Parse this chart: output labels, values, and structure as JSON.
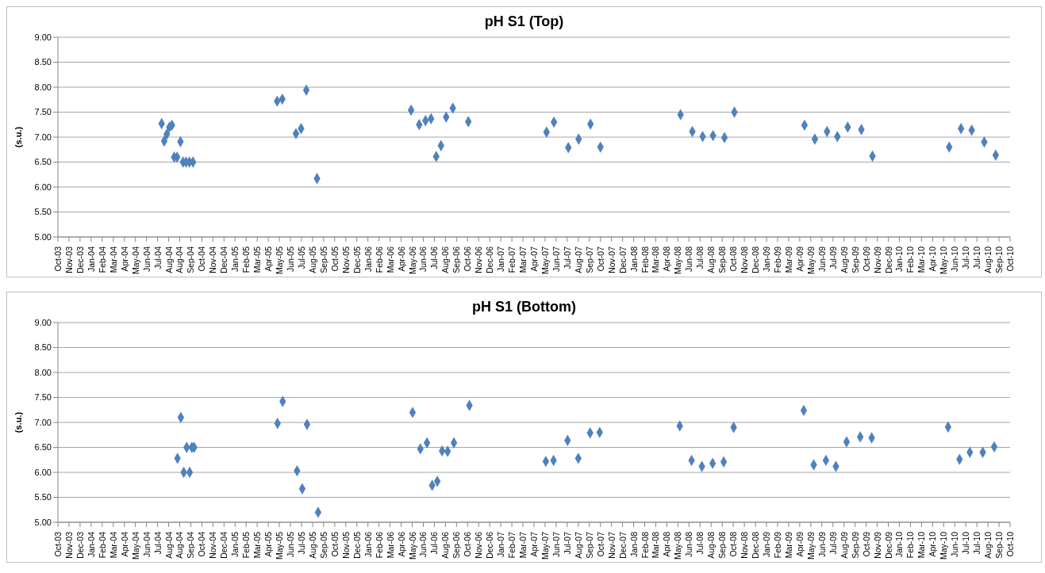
{
  "chart_data": [
    {
      "type": "scatter",
      "title": "pH S1 (Top)",
      "ylabel": "(s.u.)",
      "color": "#4f81bd",
      "marker": "diamond",
      "grid": "y",
      "x": [
        "2004-07-13",
        "2004-07-20",
        "2004-07-27",
        "2004-08-03",
        "2004-08-10",
        "2004-08-16",
        "2004-08-24",
        "2004-09-02",
        "2004-09-09",
        "2004-09-17",
        "2004-09-26",
        "2004-10-06",
        "2005-05-22",
        "2005-06-05",
        "2005-07-12",
        "2005-07-26",
        "2005-08-09",
        "2005-09-07",
        "2006-05-20",
        "2006-06-11",
        "2006-06-28",
        "2006-07-13",
        "2006-07-27",
        "2006-08-09",
        "2006-08-23",
        "2006-09-10",
        "2006-10-22",
        "2007-05-22",
        "2007-06-11",
        "2007-07-20",
        "2007-08-17",
        "2007-09-18",
        "2007-10-15",
        "2008-05-19",
        "2008-06-20",
        "2008-07-18",
        "2008-08-15",
        "2008-09-15",
        "2008-10-12",
        "2009-04-20",
        "2009-05-18",
        "2009-06-20",
        "2009-07-18",
        "2009-08-15",
        "2009-09-21",
        "2009-10-21",
        "2010-05-17",
        "2010-06-18",
        "2010-07-17",
        "2010-08-20",
        "2010-09-20"
      ],
      "values": [
        7.27,
        6.92,
        7.06,
        7.2,
        7.24,
        6.6,
        6.6,
        6.91,
        6.5,
        6.5,
        6.5,
        6.5,
        7.72,
        7.76,
        7.07,
        7.17,
        7.94,
        6.17,
        7.54,
        7.25,
        7.33,
        7.37,
        6.61,
        6.83,
        7.4,
        7.58,
        7.31,
        7.1,
        7.3,
        6.79,
        6.96,
        7.26,
        6.8,
        7.45,
        7.11,
        7.01,
        7.03,
        6.99,
        7.5,
        7.24,
        6.96,
        7.11,
        7.01,
        7.2,
        7.15,
        6.62,
        6.8,
        7.17,
        7.14,
        6.9,
        6.64
      ],
      "xlim": [
        "2003-10-06",
        "2010-10-29"
      ],
      "xticks": [
        {
          "value": "2003-10-06",
          "label": "Oct-03"
        },
        {
          "value": "2003-11-05",
          "label": "Nov-03"
        },
        {
          "value": "2003-12-05",
          "label": "Dec-03"
        },
        {
          "value": "2004-01-04",
          "label": "Jan-04"
        },
        {
          "value": "2004-02-03",
          "label": "Feb-04"
        },
        {
          "value": "2004-03-04",
          "label": "Mar-04"
        },
        {
          "value": "2004-04-03",
          "label": "Apr-04"
        },
        {
          "value": "2004-05-03",
          "label": "May-04"
        },
        {
          "value": "2004-06-02",
          "label": "Jun-04"
        },
        {
          "value": "2004-07-02",
          "label": "Jul-04"
        },
        {
          "value": "2004-08-01",
          "label": "Aug-04"
        },
        {
          "value": "2004-08-31",
          "label": "Aug-04"
        },
        {
          "value": "2004-09-30",
          "label": "Sep-04"
        },
        {
          "value": "2004-10-30",
          "label": "Oct-04"
        },
        {
          "value": "2004-11-29",
          "label": "Nov-04"
        },
        {
          "value": "2004-12-29",
          "label": "Dec-04"
        },
        {
          "value": "2005-01-28",
          "label": "Jan-05"
        },
        {
          "value": "2005-02-27",
          "label": "Feb-05"
        },
        {
          "value": "2005-03-29",
          "label": "Mar-05"
        },
        {
          "value": "2005-04-28",
          "label": "Apr-05"
        },
        {
          "value": "2005-05-28",
          "label": "May-05"
        },
        {
          "value": "2005-06-27",
          "label": "Jun-05"
        },
        {
          "value": "2005-07-27",
          "label": "Jul-05"
        },
        {
          "value": "2005-08-26",
          "label": "Aug-05"
        },
        {
          "value": "2005-09-25",
          "label": "Sep-05"
        },
        {
          "value": "2005-10-25",
          "label": "Oct-05"
        },
        {
          "value": "2005-11-24",
          "label": "Nov-05"
        },
        {
          "value": "2005-12-24",
          "label": "Dec-05"
        },
        {
          "value": "2006-01-23",
          "label": "Jan-06"
        },
        {
          "value": "2006-02-22",
          "label": "Feb-06"
        },
        {
          "value": "2006-03-24",
          "label": "Mar-06"
        },
        {
          "value": "2006-04-23",
          "label": "Apr-06"
        },
        {
          "value": "2006-05-23",
          "label": "May-06"
        },
        {
          "value": "2006-06-22",
          "label": "Jun-06"
        },
        {
          "value": "2006-07-22",
          "label": "Jul-06"
        },
        {
          "value": "2006-08-21",
          "label": "Aug-06"
        },
        {
          "value": "2006-09-20",
          "label": "Sep-06"
        },
        {
          "value": "2006-10-20",
          "label": "Oct-06"
        },
        {
          "value": "2006-11-19",
          "label": "Nov-06"
        },
        {
          "value": "2006-12-19",
          "label": "Dec-06"
        },
        {
          "value": "2007-01-18",
          "label": "Jan-07"
        },
        {
          "value": "2007-02-17",
          "label": "Feb-07"
        },
        {
          "value": "2007-03-19",
          "label": "Mar-07"
        },
        {
          "value": "2007-04-18",
          "label": "Apr-07"
        },
        {
          "value": "2007-05-18",
          "label": "May-07"
        },
        {
          "value": "2007-06-17",
          "label": "Jun-07"
        },
        {
          "value": "2007-07-17",
          "label": "Jul-07"
        },
        {
          "value": "2007-08-16",
          "label": "Aug-07"
        },
        {
          "value": "2007-09-15",
          "label": "Sep-07"
        },
        {
          "value": "2007-10-15",
          "label": "Oct-07"
        },
        {
          "value": "2007-11-14",
          "label": "Nov-07"
        },
        {
          "value": "2007-12-14",
          "label": "Dec-07"
        },
        {
          "value": "2008-01-13",
          "label": "Jan-08"
        },
        {
          "value": "2008-02-12",
          "label": "Feb-08"
        },
        {
          "value": "2008-03-13",
          "label": "Mar-08"
        },
        {
          "value": "2008-04-12",
          "label": "Apr-08"
        },
        {
          "value": "2008-05-12",
          "label": "May-08"
        },
        {
          "value": "2008-06-11",
          "label": "Jun-08"
        },
        {
          "value": "2008-07-11",
          "label": "Jul-08"
        },
        {
          "value": "2008-08-10",
          "label": "Aug-08"
        },
        {
          "value": "2008-09-09",
          "label": "Sep-08"
        },
        {
          "value": "2008-10-09",
          "label": "Oct-08"
        },
        {
          "value": "2008-11-08",
          "label": "Nov-08"
        },
        {
          "value": "2008-12-08",
          "label": "Dec-08"
        },
        {
          "value": "2009-01-07",
          "label": "Jan-09"
        },
        {
          "value": "2009-02-06",
          "label": "Feb-09"
        },
        {
          "value": "2009-03-08",
          "label": "Mar-09"
        },
        {
          "value": "2009-04-07",
          "label": "Apr-09"
        },
        {
          "value": "2009-05-07",
          "label": "May-09"
        },
        {
          "value": "2009-06-06",
          "label": "Jun-09"
        },
        {
          "value": "2009-07-06",
          "label": "Jul-09"
        },
        {
          "value": "2009-08-05",
          "label": "Aug-09"
        },
        {
          "value": "2009-09-04",
          "label": "Sep-09"
        },
        {
          "value": "2009-10-04",
          "label": "Oct-09"
        },
        {
          "value": "2009-11-03",
          "label": "Nov-09"
        },
        {
          "value": "2009-12-03",
          "label": "Dec-09"
        },
        {
          "value": "2010-01-02",
          "label": "Jan-10"
        },
        {
          "value": "2010-02-01",
          "label": "Feb-10"
        },
        {
          "value": "2010-03-03",
          "label": "Mar-10"
        },
        {
          "value": "2010-04-02",
          "label": "Apr-10"
        },
        {
          "value": "2010-05-02",
          "label": "May-10"
        },
        {
          "value": "2010-06-01",
          "label": "Jun-10"
        },
        {
          "value": "2010-07-01",
          "label": "Jul-10"
        },
        {
          "value": "2010-07-31",
          "label": "Jul-10"
        },
        {
          "value": "2010-08-30",
          "label": "Aug-10"
        },
        {
          "value": "2010-09-29",
          "label": "Sep-10"
        },
        {
          "value": "2010-10-29",
          "label": "Oct-10"
        }
      ],
      "ylim": [
        5,
        9
      ],
      "yticks": [
        {
          "value": 5,
          "label": "5.00"
        },
        {
          "value": 5.5,
          "label": "5.50"
        },
        {
          "value": 6,
          "label": "6.00"
        },
        {
          "value": 6.5,
          "label": "6.50"
        },
        {
          "value": 7,
          "label": "7.00"
        },
        {
          "value": 7.5,
          "label": "7.50"
        },
        {
          "value": 8,
          "label": "8.00"
        },
        {
          "value": 8.5,
          "label": "8.50"
        },
        {
          "value": 9,
          "label": "9.00"
        }
      ]
    },
    {
      "type": "scatter",
      "title": "pH S1 (Bottom)",
      "ylabel": "(s.u.)",
      "color": "#4f81bd",
      "marker": "diamond",
      "grid": "y",
      "x": [
        "2004-08-25",
        "2004-09-03",
        "2004-09-11",
        "2004-09-19",
        "2004-09-27",
        "2004-10-03",
        "2004-10-09",
        "2005-05-23",
        "2005-06-06",
        "2005-07-15",
        "2005-07-29",
        "2005-08-11",
        "2005-09-10",
        "2006-05-24",
        "2006-06-14",
        "2006-07-02",
        "2006-07-16",
        "2006-07-30",
        "2006-08-12",
        "2006-08-27",
        "2006-09-13",
        "2006-10-25",
        "2007-05-20",
        "2007-06-10",
        "2007-07-18",
        "2007-08-16",
        "2007-09-17",
        "2007-10-13",
        "2008-05-17",
        "2008-06-18",
        "2008-07-16",
        "2008-08-14",
        "2008-09-13",
        "2008-10-10",
        "2009-04-18",
        "2009-05-15",
        "2009-06-17",
        "2009-07-14",
        "2009-08-12",
        "2009-09-18",
        "2009-10-19",
        "2010-05-14",
        "2010-06-14",
        "2010-07-12",
        "2010-08-16",
        "2010-09-16"
      ],
      "values": [
        6.28,
        7.1,
        6.0,
        6.5,
        6.0,
        6.5,
        6.5,
        6.98,
        7.42,
        6.03,
        5.67,
        6.96,
        5.2,
        7.2,
        6.47,
        6.59,
        5.74,
        5.82,
        6.43,
        6.42,
        6.59,
        7.34,
        6.22,
        6.24,
        6.64,
        6.28,
        6.79,
        6.8,
        6.93,
        6.24,
        6.12,
        6.18,
        6.21,
        6.9,
        7.24,
        6.15,
        6.24,
        6.12,
        6.61,
        6.71,
        6.69,
        6.91,
        6.26,
        6.4,
        6.4,
        6.51
      ],
      "xlim": [
        "2003-10-06",
        "2010-10-29"
      ],
      "xticks": [
        {
          "value": "2003-10-06",
          "label": "Oct-03"
        },
        {
          "value": "2003-11-05",
          "label": "Nov-03"
        },
        {
          "value": "2003-12-05",
          "label": "Dec-03"
        },
        {
          "value": "2004-01-04",
          "label": "Jan-04"
        },
        {
          "value": "2004-02-03",
          "label": "Feb-04"
        },
        {
          "value": "2004-03-04",
          "label": "Mar-04"
        },
        {
          "value": "2004-04-03",
          "label": "Apr-04"
        },
        {
          "value": "2004-05-03",
          "label": "May-04"
        },
        {
          "value": "2004-06-02",
          "label": "Jun-04"
        },
        {
          "value": "2004-07-02",
          "label": "Jul-04"
        },
        {
          "value": "2004-08-01",
          "label": "Aug-04"
        },
        {
          "value": "2004-08-31",
          "label": "Aug-04"
        },
        {
          "value": "2004-09-30",
          "label": "Sep-04"
        },
        {
          "value": "2004-10-30",
          "label": "Oct-04"
        },
        {
          "value": "2004-11-29",
          "label": "Nov-04"
        },
        {
          "value": "2004-12-29",
          "label": "Dec-04"
        },
        {
          "value": "2005-01-28",
          "label": "Jan-05"
        },
        {
          "value": "2005-02-27",
          "label": "Feb-05"
        },
        {
          "value": "2005-03-29",
          "label": "Mar-05"
        },
        {
          "value": "2005-04-28",
          "label": "Apr-05"
        },
        {
          "value": "2005-05-28",
          "label": "May-05"
        },
        {
          "value": "2005-06-27",
          "label": "Jun-05"
        },
        {
          "value": "2005-07-27",
          "label": "Jul-05"
        },
        {
          "value": "2005-08-26",
          "label": "Aug-05"
        },
        {
          "value": "2005-09-25",
          "label": "Sep-05"
        },
        {
          "value": "2005-10-25",
          "label": "Oct-05"
        },
        {
          "value": "2005-11-24",
          "label": "Nov-05"
        },
        {
          "value": "2005-12-24",
          "label": "Dec-05"
        },
        {
          "value": "2006-01-23",
          "label": "Jan-06"
        },
        {
          "value": "2006-02-22",
          "label": "Feb-06"
        },
        {
          "value": "2006-03-24",
          "label": "Mar-06"
        },
        {
          "value": "2006-04-23",
          "label": "Apr-06"
        },
        {
          "value": "2006-05-23",
          "label": "May-06"
        },
        {
          "value": "2006-06-22",
          "label": "Jun-06"
        },
        {
          "value": "2006-07-22",
          "label": "Jul-06"
        },
        {
          "value": "2006-08-21",
          "label": "Aug-06"
        },
        {
          "value": "2006-09-20",
          "label": "Sep-06"
        },
        {
          "value": "2006-10-20",
          "label": "Oct-06"
        },
        {
          "value": "2006-11-19",
          "label": "Nov-06"
        },
        {
          "value": "2006-12-19",
          "label": "Dec-06"
        },
        {
          "value": "2007-01-18",
          "label": "Jan-07"
        },
        {
          "value": "2007-02-17",
          "label": "Feb-07"
        },
        {
          "value": "2007-03-19",
          "label": "Mar-07"
        },
        {
          "value": "2007-04-18",
          "label": "Apr-07"
        },
        {
          "value": "2007-05-18",
          "label": "May-07"
        },
        {
          "value": "2007-06-17",
          "label": "Jun-07"
        },
        {
          "value": "2007-07-17",
          "label": "Jul-07"
        },
        {
          "value": "2007-08-16",
          "label": "Aug-07"
        },
        {
          "value": "2007-09-15",
          "label": "Sep-07"
        },
        {
          "value": "2007-10-15",
          "label": "Oct-07"
        },
        {
          "value": "2007-11-14",
          "label": "Nov-07"
        },
        {
          "value": "2007-12-14",
          "label": "Dec-07"
        },
        {
          "value": "2008-01-13",
          "label": "Jan-08"
        },
        {
          "value": "2008-02-12",
          "label": "Feb-08"
        },
        {
          "value": "2008-03-13",
          "label": "Mar-08"
        },
        {
          "value": "2008-04-12",
          "label": "Apr-08"
        },
        {
          "value": "2008-05-12",
          "label": "May-08"
        },
        {
          "value": "2008-06-11",
          "label": "Jun-08"
        },
        {
          "value": "2008-07-11",
          "label": "Jul-08"
        },
        {
          "value": "2008-08-10",
          "label": "Aug-08"
        },
        {
          "value": "2008-09-09",
          "label": "Sep-08"
        },
        {
          "value": "2008-10-09",
          "label": "Oct-08"
        },
        {
          "value": "2008-11-08",
          "label": "Nov-08"
        },
        {
          "value": "2008-12-08",
          "label": "Dec-08"
        },
        {
          "value": "2009-01-07",
          "label": "Jan-09"
        },
        {
          "value": "2009-02-06",
          "label": "Feb-09"
        },
        {
          "value": "2009-03-08",
          "label": "Mar-09"
        },
        {
          "value": "2009-04-07",
          "label": "Apr-09"
        },
        {
          "value": "2009-05-07",
          "label": "May-09"
        },
        {
          "value": "2009-06-06",
          "label": "Jun-09"
        },
        {
          "value": "2009-07-06",
          "label": "Jul-09"
        },
        {
          "value": "2009-08-05",
          "label": "Aug-09"
        },
        {
          "value": "2009-09-04",
          "label": "Sep-09"
        },
        {
          "value": "2009-10-04",
          "label": "Oct-09"
        },
        {
          "value": "2009-11-03",
          "label": "Nov-09"
        },
        {
          "value": "2009-12-03",
          "label": "Dec-09"
        },
        {
          "value": "2010-01-02",
          "label": "Jan-10"
        },
        {
          "value": "2010-02-01",
          "label": "Feb-10"
        },
        {
          "value": "2010-03-03",
          "label": "Mar-10"
        },
        {
          "value": "2010-04-02",
          "label": "Apr-10"
        },
        {
          "value": "2010-05-02",
          "label": "May-10"
        },
        {
          "value": "2010-06-01",
          "label": "Jun-10"
        },
        {
          "value": "2010-07-01",
          "label": "Jul-10"
        },
        {
          "value": "2010-07-31",
          "label": "Jul-10"
        },
        {
          "value": "2010-08-30",
          "label": "Aug-10"
        },
        {
          "value": "2010-09-29",
          "label": "Sep-10"
        },
        {
          "value": "2010-10-29",
          "label": "Oct-10"
        }
      ],
      "ylim": [
        5,
        9
      ],
      "yticks": [
        {
          "value": 5,
          "label": "5.00"
        },
        {
          "value": 5.5,
          "label": "5.50"
        },
        {
          "value": 6,
          "label": "6.00"
        },
        {
          "value": 6.5,
          "label": "6.50"
        },
        {
          "value": 7,
          "label": "7.00"
        },
        {
          "value": 7.5,
          "label": "7.50"
        },
        {
          "value": 8,
          "label": "8.00"
        },
        {
          "value": 8.5,
          "label": "8.50"
        },
        {
          "value": 9,
          "label": "9.00"
        }
      ]
    }
  ]
}
